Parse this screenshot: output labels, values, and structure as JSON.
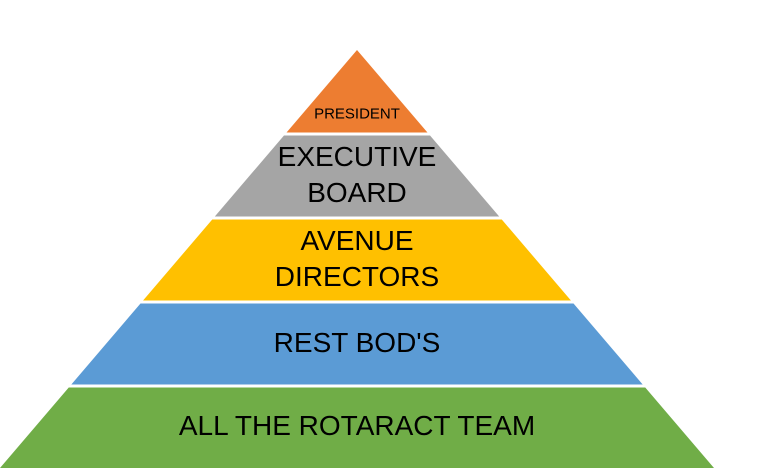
{
  "pyramid": {
    "levels": [
      {
        "id": "president",
        "lines": [
          "PRESIDENT"
        ],
        "color": "#ED7D31"
      },
      {
        "id": "executive-board",
        "lines": [
          "EXECUTIVE",
          "BOARD"
        ],
        "color": "#A5A5A5"
      },
      {
        "id": "avenue-directors",
        "lines": [
          "AVENUE",
          "DIRECTORS"
        ],
        "color": "#FFC000"
      },
      {
        "id": "rest-bods",
        "lines": [
          "REST BOD'S"
        ],
        "color": "#5B9BD5"
      },
      {
        "id": "rotaract-team",
        "lines": [
          "ALL THE ROTARACT TEAM"
        ],
        "color": "#70AD47"
      }
    ]
  }
}
